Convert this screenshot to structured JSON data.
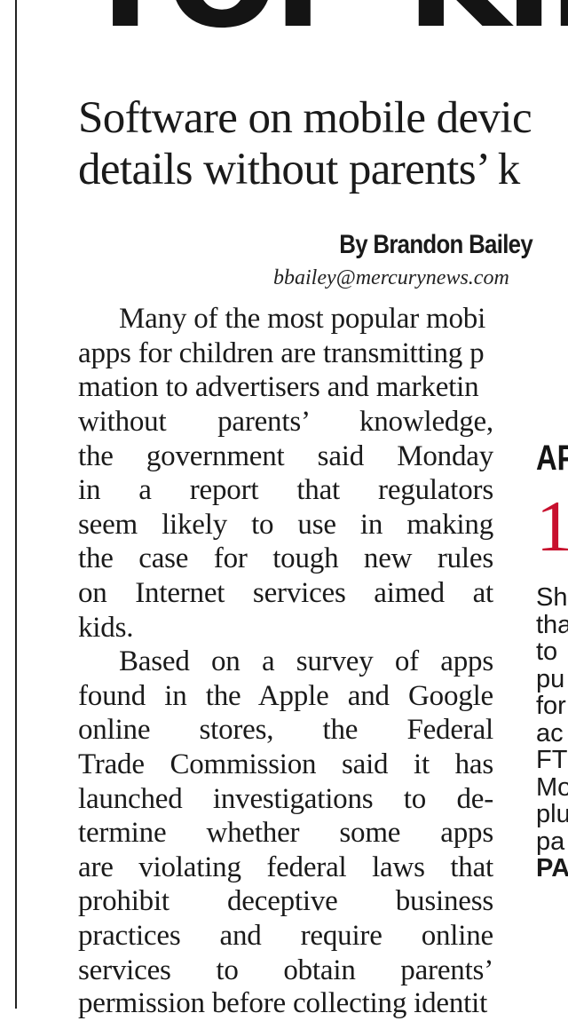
{
  "headline_fragment": "TOP KID",
  "deck": {
    "line1": "Software on mobile devic",
    "line2": "details without parents’ k"
  },
  "byline": {
    "author": "By Brandon Bailey",
    "email": "bbailey@mercurynews.com"
  },
  "article": {
    "full_lines": [
      "Many of the most popular mobi",
      "apps for children are transmitting p",
      "mation to advertisers and marketin"
    ],
    "column_lines": [
      "without parents’ knowledge,",
      "the government said Monday",
      "in a report that regulators",
      "seem likely to use in making",
      "the case for tough new rules",
      "on Internet services aimed at",
      "kids.",
      "Based on a survey of apps",
      "found in the Apple and Google",
      "online stores, the Federal",
      "Trade Commission said it has",
      "launched investigations to de-",
      "termine whether some apps",
      "are violating federal laws that",
      "prohibit deceptive business",
      "practices and require online",
      "services to obtain parents’"
    ],
    "bottom_line": "permission before collecting identit"
  },
  "sidebar": {
    "label": "AP",
    "number": "1",
    "lines": [
      "Sh",
      "tha",
      "to",
      "pu",
      "for",
      "ac",
      "FT",
      "Mo",
      "plu",
      "pa"
    ],
    "more": "PA"
  },
  "colors": {
    "accent_red": "#c8102e",
    "text": "#1a1a1a"
  }
}
